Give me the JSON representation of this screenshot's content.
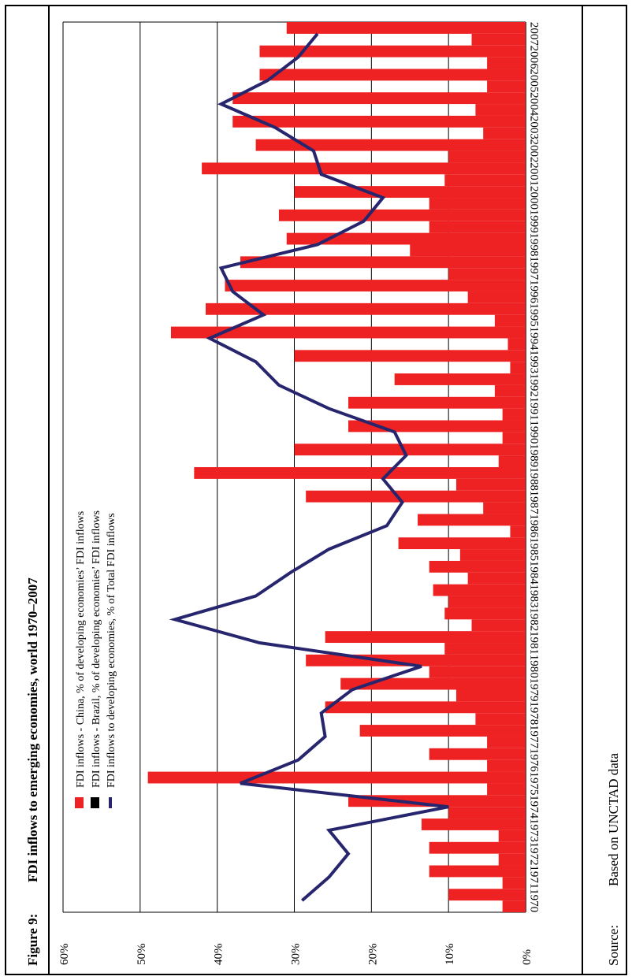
{
  "figure": {
    "label": "Figure 9:",
    "title": "FDI inflows to emerging economies, world 1970–2007"
  },
  "source": {
    "label": "Source:",
    "text": "Based on UNCTAD data"
  },
  "colors": {
    "china": "#ee2222",
    "brazil": "#000000",
    "total": "#26256e",
    "grid": "#000000"
  },
  "chart_data": {
    "type": "bar",
    "title": "FDI inflows to emerging economies, world 1970–2007",
    "categories": [
      "1970",
      "1971",
      "1972",
      "1973",
      "1974",
      "1975",
      "1976",
      "1977",
      "1978",
      "1979",
      "1980",
      "1981",
      "1982",
      "1983",
      "1984",
      "1985",
      "1986",
      "1987",
      "1988",
      "1989",
      "1990",
      "1991",
      "1992",
      "1993",
      "1994",
      "1995",
      "1996",
      "1997",
      "1998",
      "1999",
      "2000",
      "2001",
      "2002",
      "2003",
      "2004",
      "2005",
      "2006",
      "2007"
    ],
    "ylim": [
      0,
      60
    ],
    "yticks": [
      "0%",
      "10%",
      "20%",
      "30%",
      "40%",
      "50%",
      "60%"
    ],
    "grid": true,
    "legend_position": "top-left (rotated)",
    "series": [
      {
        "name": "FDI inflows - China, % of developing economies’ FDI inflows",
        "type": "bar",
        "values": [
          3,
          3,
          3.5,
          3.5,
          10,
          5,
          5,
          5,
          6.5,
          9,
          12.5,
          10.5,
          7,
          10,
          7.5,
          8.5,
          2,
          5.5,
          9,
          3.5,
          3,
          3,
          4,
          2,
          2.3,
          4,
          7.5,
          10,
          15,
          12.5,
          12.5,
          10.5,
          10,
          5.5,
          6.5,
          5,
          5,
          7
        ]
      },
      {
        "name": "FDI inflows - Brazil, % of developing economies’ FDI inflows",
        "type": "bar",
        "values": [
          10,
          12.5,
          12.5,
          13.5,
          23,
          49,
          12.5,
          21.5,
          26,
          24,
          28.5,
          26,
          10.5,
          12,
          12.5,
          16.5,
          14,
          28.5,
          43,
          30,
          23,
          23,
          17,
          30,
          46,
          41.5,
          39,
          37,
          31,
          32,
          30,
          42,
          35,
          38,
          38,
          34.5,
          34.5,
          31
        ]
      },
      {
        "name": "FDI inflows to developing economies, % of Total FDI inflows",
        "type": "line",
        "values": [
          29,
          25.5,
          23,
          25.5,
          10,
          37,
          29.5,
          26,
          26.5,
          22.5,
          13.5,
          34.5,
          45.5,
          35,
          30.5,
          25.5,
          18,
          16,
          18.5,
          15.5,
          17,
          25.5,
          32,
          35,
          41,
          34,
          38,
          39.5,
          27,
          21,
          18.5,
          26.5,
          27.5,
          32.5,
          39.5,
          33.5,
          29.5,
          27
        ]
      }
    ]
  }
}
